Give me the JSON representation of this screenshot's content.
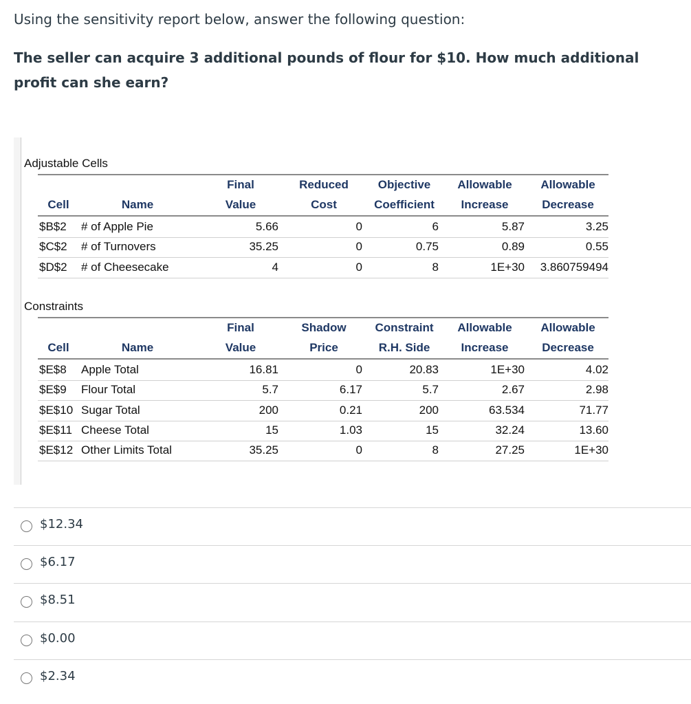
{
  "prompt": "Using the sensitivity report below, answer the following question:",
  "question": "The seller can acquire 3 additional pounds of flour for $10. How much additional profit can she earn?",
  "report": {
    "sections": [
      {
        "title": "Adjustable Cells",
        "headers": [
          [
            "Cell"
          ],
          [
            "Name"
          ],
          [
            "Final",
            "Value"
          ],
          [
            "Reduced",
            "Cost"
          ],
          [
            "Objective",
            "Coefficient"
          ],
          [
            "Allowable",
            "Increase"
          ],
          [
            "Allowable",
            "Decrease"
          ]
        ],
        "rows": [
          [
            "$B$2",
            "# of Apple Pie",
            "5.66",
            "0",
            "6",
            "5.87",
            "3.25"
          ],
          [
            "$C$2",
            "# of Turnovers",
            "35.25",
            "0",
            "0.75",
            "0.89",
            "0.55"
          ],
          [
            "$D$2",
            "# of Cheesecake",
            "4",
            "0",
            "8",
            "1E+30",
            "3.860759494"
          ]
        ]
      },
      {
        "title": "Constraints",
        "headers": [
          [
            "Cell"
          ],
          [
            "Name"
          ],
          [
            "Final",
            "Value"
          ],
          [
            "Shadow",
            "Price"
          ],
          [
            "Constraint",
            "R.H. Side"
          ],
          [
            "Allowable",
            "Increase"
          ],
          [
            "Allowable",
            "Decrease"
          ]
        ],
        "rows": [
          [
            "$E$8",
            "Apple Total",
            "16.81",
            "0",
            "20.83",
            "1E+30",
            "4.02"
          ],
          [
            "$E$9",
            "Flour Total",
            "5.7",
            "6.17",
            "5.7",
            "2.67",
            "2.98"
          ],
          [
            "$E$10",
            "Sugar Total",
            "200",
            "0.21",
            "200",
            "63.534",
            "71.77"
          ],
          [
            "$E$11",
            "Cheese Total",
            "15",
            "1.03",
            "15",
            "32.24",
            "13.60"
          ],
          [
            "$E$12",
            "Other Limits Total",
            "35.25",
            "0",
            "8",
            "27.25",
            "1E+30"
          ]
        ]
      }
    ]
  },
  "options": [
    "$12.34",
    "$6.17",
    "$8.51",
    "$0.00",
    "$2.34"
  ]
}
